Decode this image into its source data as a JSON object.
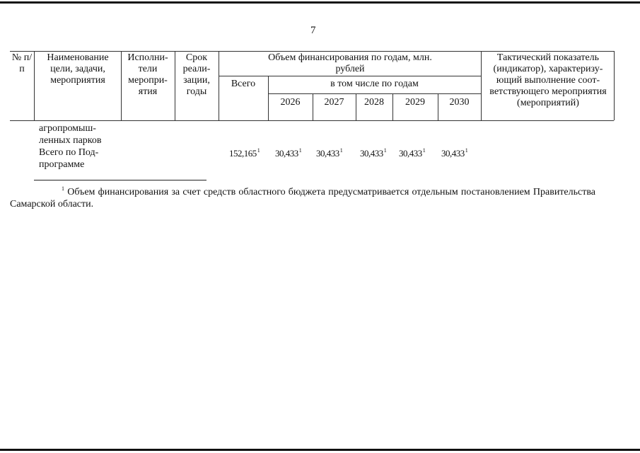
{
  "page_number": "7",
  "table": {
    "headers": {
      "num": "№ п/п",
      "name": "Наименование цели, задачи, мероприятия",
      "executors": "Исполни-тели меропри-ятия",
      "term": "Срок реали-зации, годы",
      "funding": "Объем финансирования по годам, млн. рублей",
      "total": "Всего",
      "by_years": "в том числе по годам",
      "years": [
        "2026",
        "2027",
        "2028",
        "2029",
        "2030"
      ],
      "indicator": "Тактический показатель (индикатор), характеризу-ющий выполнение соот-ветствующего мероприятия (мероприятий)"
    },
    "rows": [
      {
        "name_line1": "агропромыш-",
        "name_line2": "ленных парков"
      },
      {
        "name_line1": "Всего по Под-",
        "name_line2": "программе",
        "total": "152,165",
        "values": [
          "30,433",
          "30,433",
          "30,433",
          "30,433",
          "30,433"
        ],
        "footnote_mark": "1"
      }
    ]
  },
  "footnote": {
    "mark": "1",
    "text": "Объем финансирования за счет средств областного бюджета предусматривается отдельным постановлением Правительства Самарской области."
  }
}
